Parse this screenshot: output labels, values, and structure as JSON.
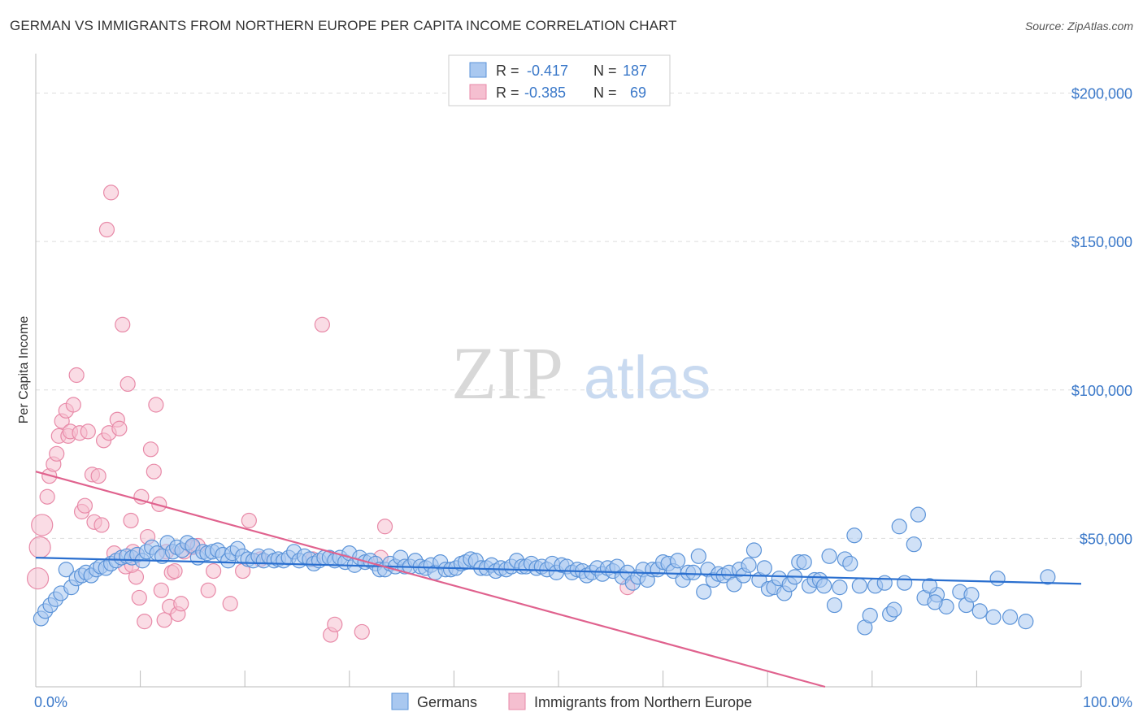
{
  "title": "GERMAN VS IMMIGRANTS FROM NORTHERN EUROPE PER CAPITA INCOME CORRELATION CHART",
  "source": "Source: ZipAtlas.com",
  "watermark": {
    "zip": "ZIP",
    "atlas": "atlas"
  },
  "colors": {
    "blue_fill": "#a9c8f0",
    "blue_stroke": "#5b93d8",
    "blue_line": "#2a6fcf",
    "pink_fill": "#f5bfd0",
    "pink_stroke": "#e88aa8",
    "pink_line": "#e0628e",
    "tick_text": "#3a78c9",
    "grid": "#dddddd"
  },
  "legend": {
    "rows": [
      {
        "r_label": "R =",
        "r_value": "-0.417",
        "n_label": "N =",
        "n_value": "187"
      },
      {
        "r_label": "R =",
        "r_value": "-0.385",
        "n_label": "N =",
        "n_value": "69"
      }
    ]
  },
  "bottom_legend": [
    "Germans",
    "Immigrants from Northern Europe"
  ],
  "chart_data": {
    "type": "scatter",
    "title": "GERMAN VS IMMIGRANTS FROM NORTHERN EUROPE PER CAPITA INCOME CORRELATION CHART",
    "xlabel": "",
    "ylabel": "Per Capita Income",
    "xlim": [
      0,
      100
    ],
    "ylim": [
      0,
      210000
    ],
    "x_ticks": [
      "0.0%",
      "100.0%"
    ],
    "y_ticks": [
      {
        "value": 50000,
        "label": "$50,000"
      },
      {
        "value": 100000,
        "label": "$100,000"
      },
      {
        "value": 150000,
        "label": "$150,000"
      },
      {
        "value": 200000,
        "label": "$200,000"
      }
    ],
    "grid": true,
    "legend_position": "top-center",
    "series": [
      {
        "name": "Germans",
        "color": "#5b93d8",
        "r": -0.417,
        "n": 187,
        "trend": {
          "x": [
            0,
            100
          ],
          "y": [
            43500,
            34700
          ]
        },
        "points": [
          [
            0.5,
            23000
          ],
          [
            0.9,
            25500
          ],
          [
            1.4,
            27500
          ],
          [
            1.9,
            29500
          ],
          [
            2.4,
            31500
          ],
          [
            2.9,
            39500
          ],
          [
            3.4,
            33500
          ],
          [
            3.9,
            36500
          ],
          [
            4.4,
            37500
          ],
          [
            4.8,
            38500
          ],
          [
            5.3,
            37500
          ],
          [
            5.8,
            39500
          ],
          [
            6.2,
            40500
          ],
          [
            6.7,
            40000
          ],
          [
            7.2,
            41500
          ],
          [
            7.7,
            42500
          ],
          [
            8.2,
            43500
          ],
          [
            8.7,
            44000
          ],
          [
            9.2,
            43500
          ],
          [
            9.7,
            44500
          ],
          [
            10.2,
            42500
          ],
          [
            10.6,
            45500
          ],
          [
            11.1,
            47000
          ],
          [
            11.6,
            45000
          ],
          [
            12.1,
            44000
          ],
          [
            12.6,
            48500
          ],
          [
            13.1,
            45500
          ],
          [
            13.5,
            47000
          ],
          [
            14.0,
            46000
          ],
          [
            14.5,
            48500
          ],
          [
            15.0,
            47500
          ],
          [
            15.5,
            43500
          ],
          [
            16.0,
            45500
          ],
          [
            16.4,
            45000
          ],
          [
            16.9,
            45500
          ],
          [
            17.4,
            46000
          ],
          [
            17.9,
            44500
          ],
          [
            18.4,
            42500
          ],
          [
            18.8,
            45000
          ],
          [
            19.3,
            46500
          ],
          [
            19.8,
            44000
          ],
          [
            20.3,
            43000
          ],
          [
            20.8,
            42500
          ],
          [
            21.3,
            44000
          ],
          [
            21.8,
            42500
          ],
          [
            22.3,
            44000
          ],
          [
            22.8,
            42500
          ],
          [
            23.2,
            43000
          ],
          [
            23.7,
            42500
          ],
          [
            24.2,
            43500
          ],
          [
            24.7,
            45500
          ],
          [
            25.2,
            42500
          ],
          [
            25.7,
            44000
          ],
          [
            26.2,
            43000
          ],
          [
            26.6,
            41500
          ],
          [
            27.1,
            42500
          ],
          [
            27.6,
            43500
          ],
          [
            28.1,
            43500
          ],
          [
            28.6,
            42500
          ],
          [
            29.1,
            43500
          ],
          [
            29.6,
            42000
          ],
          [
            30.0,
            45000
          ],
          [
            30.5,
            41000
          ],
          [
            31.0,
            43500
          ],
          [
            31.5,
            42000
          ],
          [
            32.0,
            42500
          ],
          [
            32.5,
            41500
          ],
          [
            32.9,
            39500
          ],
          [
            33.4,
            39500
          ],
          [
            33.9,
            41500
          ],
          [
            34.4,
            40500
          ],
          [
            34.9,
            43500
          ],
          [
            35.3,
            40500
          ],
          [
            35.8,
            40500
          ],
          [
            36.3,
            42500
          ],
          [
            36.8,
            40500
          ],
          [
            37.3,
            40000
          ],
          [
            37.8,
            41000
          ],
          [
            38.2,
            38500
          ],
          [
            38.7,
            42000
          ],
          [
            39.2,
            39500
          ],
          [
            39.7,
            39500
          ],
          [
            40.2,
            40000
          ],
          [
            40.7,
            41500
          ],
          [
            41.1,
            42000
          ],
          [
            41.6,
            43000
          ],
          [
            42.1,
            42500
          ],
          [
            42.6,
            40000
          ],
          [
            43.1,
            40000
          ],
          [
            43.6,
            41000
          ],
          [
            44.0,
            39000
          ],
          [
            44.5,
            40000
          ],
          [
            45.0,
            39500
          ],
          [
            45.5,
            40500
          ],
          [
            46.0,
            42500
          ],
          [
            46.5,
            40500
          ],
          [
            46.9,
            40500
          ],
          [
            47.4,
            41500
          ],
          [
            47.9,
            40000
          ],
          [
            48.4,
            40500
          ],
          [
            48.9,
            39500
          ],
          [
            49.4,
            41500
          ],
          [
            49.8,
            38500
          ],
          [
            50.3,
            41000
          ],
          [
            50.8,
            40500
          ],
          [
            51.3,
            38500
          ],
          [
            51.8,
            39500
          ],
          [
            52.3,
            39000
          ],
          [
            52.7,
            37500
          ],
          [
            53.2,
            38500
          ],
          [
            53.7,
            40000
          ],
          [
            54.2,
            38000
          ],
          [
            54.7,
            40000
          ],
          [
            55.2,
            39000
          ],
          [
            55.6,
            40500
          ],
          [
            56.1,
            37000
          ],
          [
            56.6,
            38500
          ],
          [
            57.1,
            35000
          ],
          [
            57.6,
            37000
          ],
          [
            58.1,
            39500
          ],
          [
            58.5,
            36000
          ],
          [
            59.0,
            39500
          ],
          [
            59.5,
            39500
          ],
          [
            60.0,
            42000
          ],
          [
            60.5,
            41500
          ],
          [
            61.0,
            39000
          ],
          [
            61.4,
            42500
          ],
          [
            61.9,
            36000
          ],
          [
            62.4,
            38500
          ],
          [
            62.9,
            38500
          ],
          [
            63.4,
            44000
          ],
          [
            63.9,
            32000
          ],
          [
            64.3,
            39500
          ],
          [
            64.8,
            36000
          ],
          [
            65.3,
            38000
          ],
          [
            65.8,
            37500
          ],
          [
            66.3,
            38500
          ],
          [
            66.8,
            34500
          ],
          [
            67.3,
            39500
          ],
          [
            67.7,
            37500
          ],
          [
            68.2,
            41000
          ],
          [
            68.7,
            46000
          ],
          [
            69.2,
            36000
          ],
          [
            69.7,
            40000
          ],
          [
            70.1,
            33000
          ],
          [
            70.6,
            33500
          ],
          [
            71.1,
            36500
          ],
          [
            71.6,
            31500
          ],
          [
            72.1,
            34500
          ],
          [
            72.6,
            37000
          ],
          [
            73.0,
            42000
          ],
          [
            73.5,
            42000
          ],
          [
            74.0,
            34000
          ],
          [
            74.5,
            36000
          ],
          [
            75.0,
            36000
          ],
          [
            75.4,
            34000
          ],
          [
            75.9,
            44000
          ],
          [
            76.4,
            27500
          ],
          [
            76.9,
            33500
          ],
          [
            77.4,
            43000
          ],
          [
            77.9,
            41500
          ],
          [
            78.3,
            51000
          ],
          [
            78.8,
            34000
          ],
          [
            79.3,
            20000
          ],
          [
            79.8,
            24000
          ],
          [
            80.3,
            34000
          ],
          [
            81.2,
            35000
          ],
          [
            81.7,
            24500
          ],
          [
            82.1,
            26000
          ],
          [
            82.6,
            54000
          ],
          [
            83.1,
            35000
          ],
          [
            84.0,
            48000
          ],
          [
            84.4,
            58000
          ],
          [
            85.0,
            30000
          ],
          [
            86.2,
            31000
          ],
          [
            87.1,
            27000
          ],
          [
            88.4,
            32000
          ],
          [
            89.0,
            27500
          ],
          [
            90.3,
            25500
          ],
          [
            91.6,
            23500
          ],
          [
            96.8,
            37000
          ],
          [
            94.7,
            22000
          ],
          [
            93.2,
            23500
          ],
          [
            92.0,
            36500
          ],
          [
            89.5,
            31000
          ],
          [
            86.0,
            28500
          ],
          [
            85.5,
            34000
          ]
        ]
      },
      {
        "name": "Immigrants from Northern Europe",
        "color": "#e88aa8",
        "r": -0.385,
        "n": 69,
        "trend": {
          "x": [
            0,
            75.5
          ],
          "y": [
            72500,
            0
          ]
        },
        "points": [
          [
            0.2,
            36500
          ],
          [
            0.4,
            47000
          ],
          [
            0.6,
            54500
          ],
          [
            1.1,
            64000
          ],
          [
            1.3,
            71000
          ],
          [
            1.7,
            75000
          ],
          [
            2.0,
            78500
          ],
          [
            2.2,
            84500
          ],
          [
            2.5,
            89500
          ],
          [
            2.9,
            93000
          ],
          [
            3.1,
            84500
          ],
          [
            3.3,
            86000
          ],
          [
            3.6,
            95000
          ],
          [
            3.9,
            105000
          ],
          [
            4.2,
            85500
          ],
          [
            4.4,
            59000
          ],
          [
            4.7,
            61000
          ],
          [
            5.0,
            86000
          ],
          [
            5.4,
            71500
          ],
          [
            5.6,
            55500
          ],
          [
            6.0,
            71000
          ],
          [
            6.3,
            54500
          ],
          [
            6.5,
            83000
          ],
          [
            6.8,
            154000
          ],
          [
            7.0,
            85500
          ],
          [
            7.2,
            166500
          ],
          [
            7.5,
            45000
          ],
          [
            7.8,
            90000
          ],
          [
            8.0,
            87000
          ],
          [
            8.3,
            122000
          ],
          [
            8.6,
            40500
          ],
          [
            8.8,
            102000
          ],
          [
            9.1,
            56000
          ],
          [
            9.3,
            45500
          ],
          [
            9.6,
            37000
          ],
          [
            9.9,
            30000
          ],
          [
            10.1,
            64000
          ],
          [
            10.4,
            22000
          ],
          [
            10.7,
            50500
          ],
          [
            11.0,
            80000
          ],
          [
            11.3,
            72500
          ],
          [
            11.5,
            95000
          ],
          [
            11.8,
            61500
          ],
          [
            12.0,
            32500
          ],
          [
            12.3,
            22500
          ],
          [
            12.8,
            27000
          ],
          [
            13.0,
            38500
          ],
          [
            13.3,
            39000
          ],
          [
            13.6,
            24500
          ],
          [
            13.9,
            28000
          ],
          [
            14.2,
            45500
          ],
          [
            15.0,
            47000
          ],
          [
            16.5,
            32500
          ],
          [
            17.0,
            39000
          ],
          [
            18.6,
            28000
          ],
          [
            19.8,
            39000
          ],
          [
            20.4,
            56000
          ],
          [
            21.5,
            43000
          ],
          [
            26.5,
            43000
          ],
          [
            27.4,
            122000
          ],
          [
            28.2,
            17500
          ],
          [
            28.6,
            21000
          ],
          [
            31.2,
            18500
          ],
          [
            33.0,
            43500
          ],
          [
            33.4,
            54000
          ],
          [
            12.5,
            45500
          ],
          [
            9.2,
            41000
          ],
          [
            15.5,
            47500
          ],
          [
            56.6,
            33500
          ]
        ]
      }
    ]
  }
}
